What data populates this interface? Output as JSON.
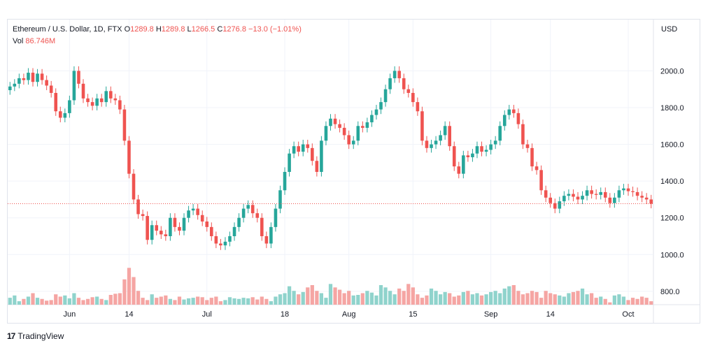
{
  "legend": {
    "symbol": "Ethereum / U.S. Dollar, 1D, FTX",
    "o_label": "O",
    "o_value": "1289.8",
    "h_label": "H",
    "h_value": "1289.8",
    "l_label": "L",
    "l_value": "1266.5",
    "c_label": "C",
    "c_value": "1276.8",
    "change": "−13.0 (−1.01%)",
    "vol_label": "Vol",
    "vol_value": "86.746M"
  },
  "currency": "USD",
  "footer": {
    "brand": "TradingView",
    "icon": "tradingview-logo-icon"
  },
  "colors": {
    "up": "#26a69a",
    "down": "#ef5350",
    "up_vol": "#8fd3cc",
    "down_vol": "#f5a5a3",
    "grid": "#f0f3fa",
    "last_price_line": "#ef5350"
  },
  "chart_data": {
    "type": "candlestick",
    "title": "Ethereum / U.S. Dollar, 1D, FTX",
    "ylabel": "USD",
    "ylim": [
      750,
      2150
    ],
    "y_ticks": [
      "2000.0",
      "1800.0",
      "1600.0",
      "1400.0",
      "1200.0",
      "1000.0",
      "800.0"
    ],
    "y_tick_values": [
      2000,
      1800,
      1600,
      1400,
      1200,
      1000,
      800
    ],
    "x_ticks": [
      {
        "label": "Jun",
        "index": 13
      },
      {
        "label": "14",
        "index": 26
      },
      {
        "label": "Jul",
        "index": 43
      },
      {
        "label": "18",
        "index": 60
      },
      {
        "label": "Aug",
        "index": 74
      },
      {
        "label": "15",
        "index": 88
      },
      {
        "label": "Sep",
        "index": 105
      },
      {
        "label": "14",
        "index": 118
      },
      {
        "label": "Oct",
        "index": 135
      }
    ],
    "last_price": 1276.8,
    "close": [
      1915,
      1930,
      1960,
      1950,
      1990,
      1940,
      1985,
      1950,
      1920,
      1880,
      1780,
      1745,
      1770,
      1840,
      2000,
      1930,
      1850,
      1830,
      1810,
      1850,
      1830,
      1890,
      1850,
      1840,
      1790,
      1620,
      1440,
      1300,
      1220,
      1210,
      1080,
      1160,
      1130,
      1110,
      1100,
      1200,
      1150,
      1130,
      1200,
      1240,
      1250,
      1215,
      1180,
      1150,
      1100,
      1060,
      1050,
      1070,
      1100,
      1150,
      1200,
      1250,
      1270,
      1225,
      1200,
      1100,
      1060,
      1150,
      1250,
      1350,
      1450,
      1550,
      1590,
      1560,
      1600,
      1580,
      1510,
      1450,
      1620,
      1700,
      1740,
      1710,
      1690,
      1650,
      1600,
      1620,
      1700,
      1690,
      1720,
      1760,
      1790,
      1830,
      1900,
      1960,
      2000,
      1960,
      1900,
      1880,
      1830,
      1780,
      1620,
      1580,
      1600,
      1620,
      1650,
      1700,
      1590,
      1480,
      1440,
      1540,
      1530,
      1550,
      1590,
      1560,
      1570,
      1600,
      1620,
      1700,
      1760,
      1790,
      1770,
      1710,
      1600,
      1580,
      1480,
      1460,
      1350,
      1310,
      1280,
      1250,
      1290,
      1320,
      1330,
      1315,
      1300,
      1320,
      1350,
      1330,
      1325,
      1340,
      1310,
      1280,
      1310,
      1350,
      1360,
      1345,
      1340,
      1320,
      1310,
      1300,
      1276.8
    ],
    "volume": [
      820,
      840,
      790,
      810,
      830,
      860,
      820,
      810,
      795,
      800,
      850,
      830,
      840,
      815,
      860,
      820,
      800,
      810,
      825,
      830,
      810,
      800,
      845,
      855,
      860,
      980,
      1080,
      1000,
      880,
      820,
      800,
      850,
      820,
      830,
      840,
      810,
      800,
      830,
      805,
      815,
      820,
      830,
      825,
      800,
      820,
      830,
      790,
      800,
      825,
      815,
      810,
      820,
      815,
      825,
      805,
      830,
      810,
      790,
      830,
      850,
      860,
      920,
      880,
      850,
      870,
      910,
      930,
      880,
      860,
      820,
      940,
      910,
      890,
      860,
      880,
      840,
      845,
      860,
      880,
      865,
      840,
      930,
      910,
      880,
      850,
      900,
      880,
      940,
      910,
      850,
      820,
      840,
      900,
      880,
      850,
      870,
      860,
      830,
      840,
      870,
      880,
      850,
      860,
      840,
      850,
      870,
      880,
      860,
      900,
      920,
      930,
      880,
      850,
      860,
      880,
      870,
      820,
      880,
      860,
      850,
      840,
      830,
      860,
      870,
      880,
      900,
      850,
      860,
      820,
      830,
      810,
      780,
      840,
      850,
      830,
      800,
      820,
      810,
      830,
      820,
      790
    ]
  }
}
